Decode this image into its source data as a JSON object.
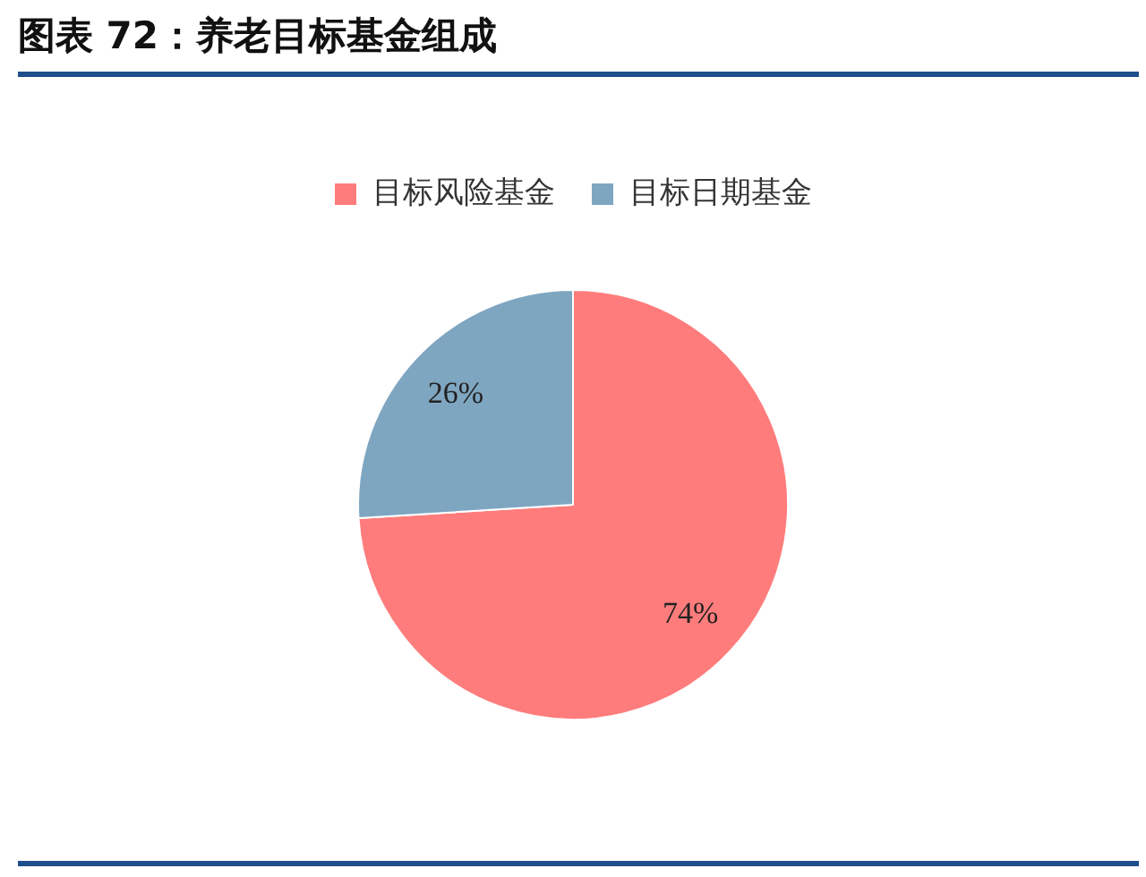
{
  "chart_data": {
    "type": "pie",
    "title": "图表 72：养老目标基金组成",
    "categories": [
      "目标风险基金",
      "目标日期基金"
    ],
    "values": [
      74,
      26
    ],
    "colors": [
      "#ff7c7c",
      "#7fa6c1"
    ],
    "value_labels": [
      "74%",
      "26%"
    ],
    "legend": "top"
  }
}
